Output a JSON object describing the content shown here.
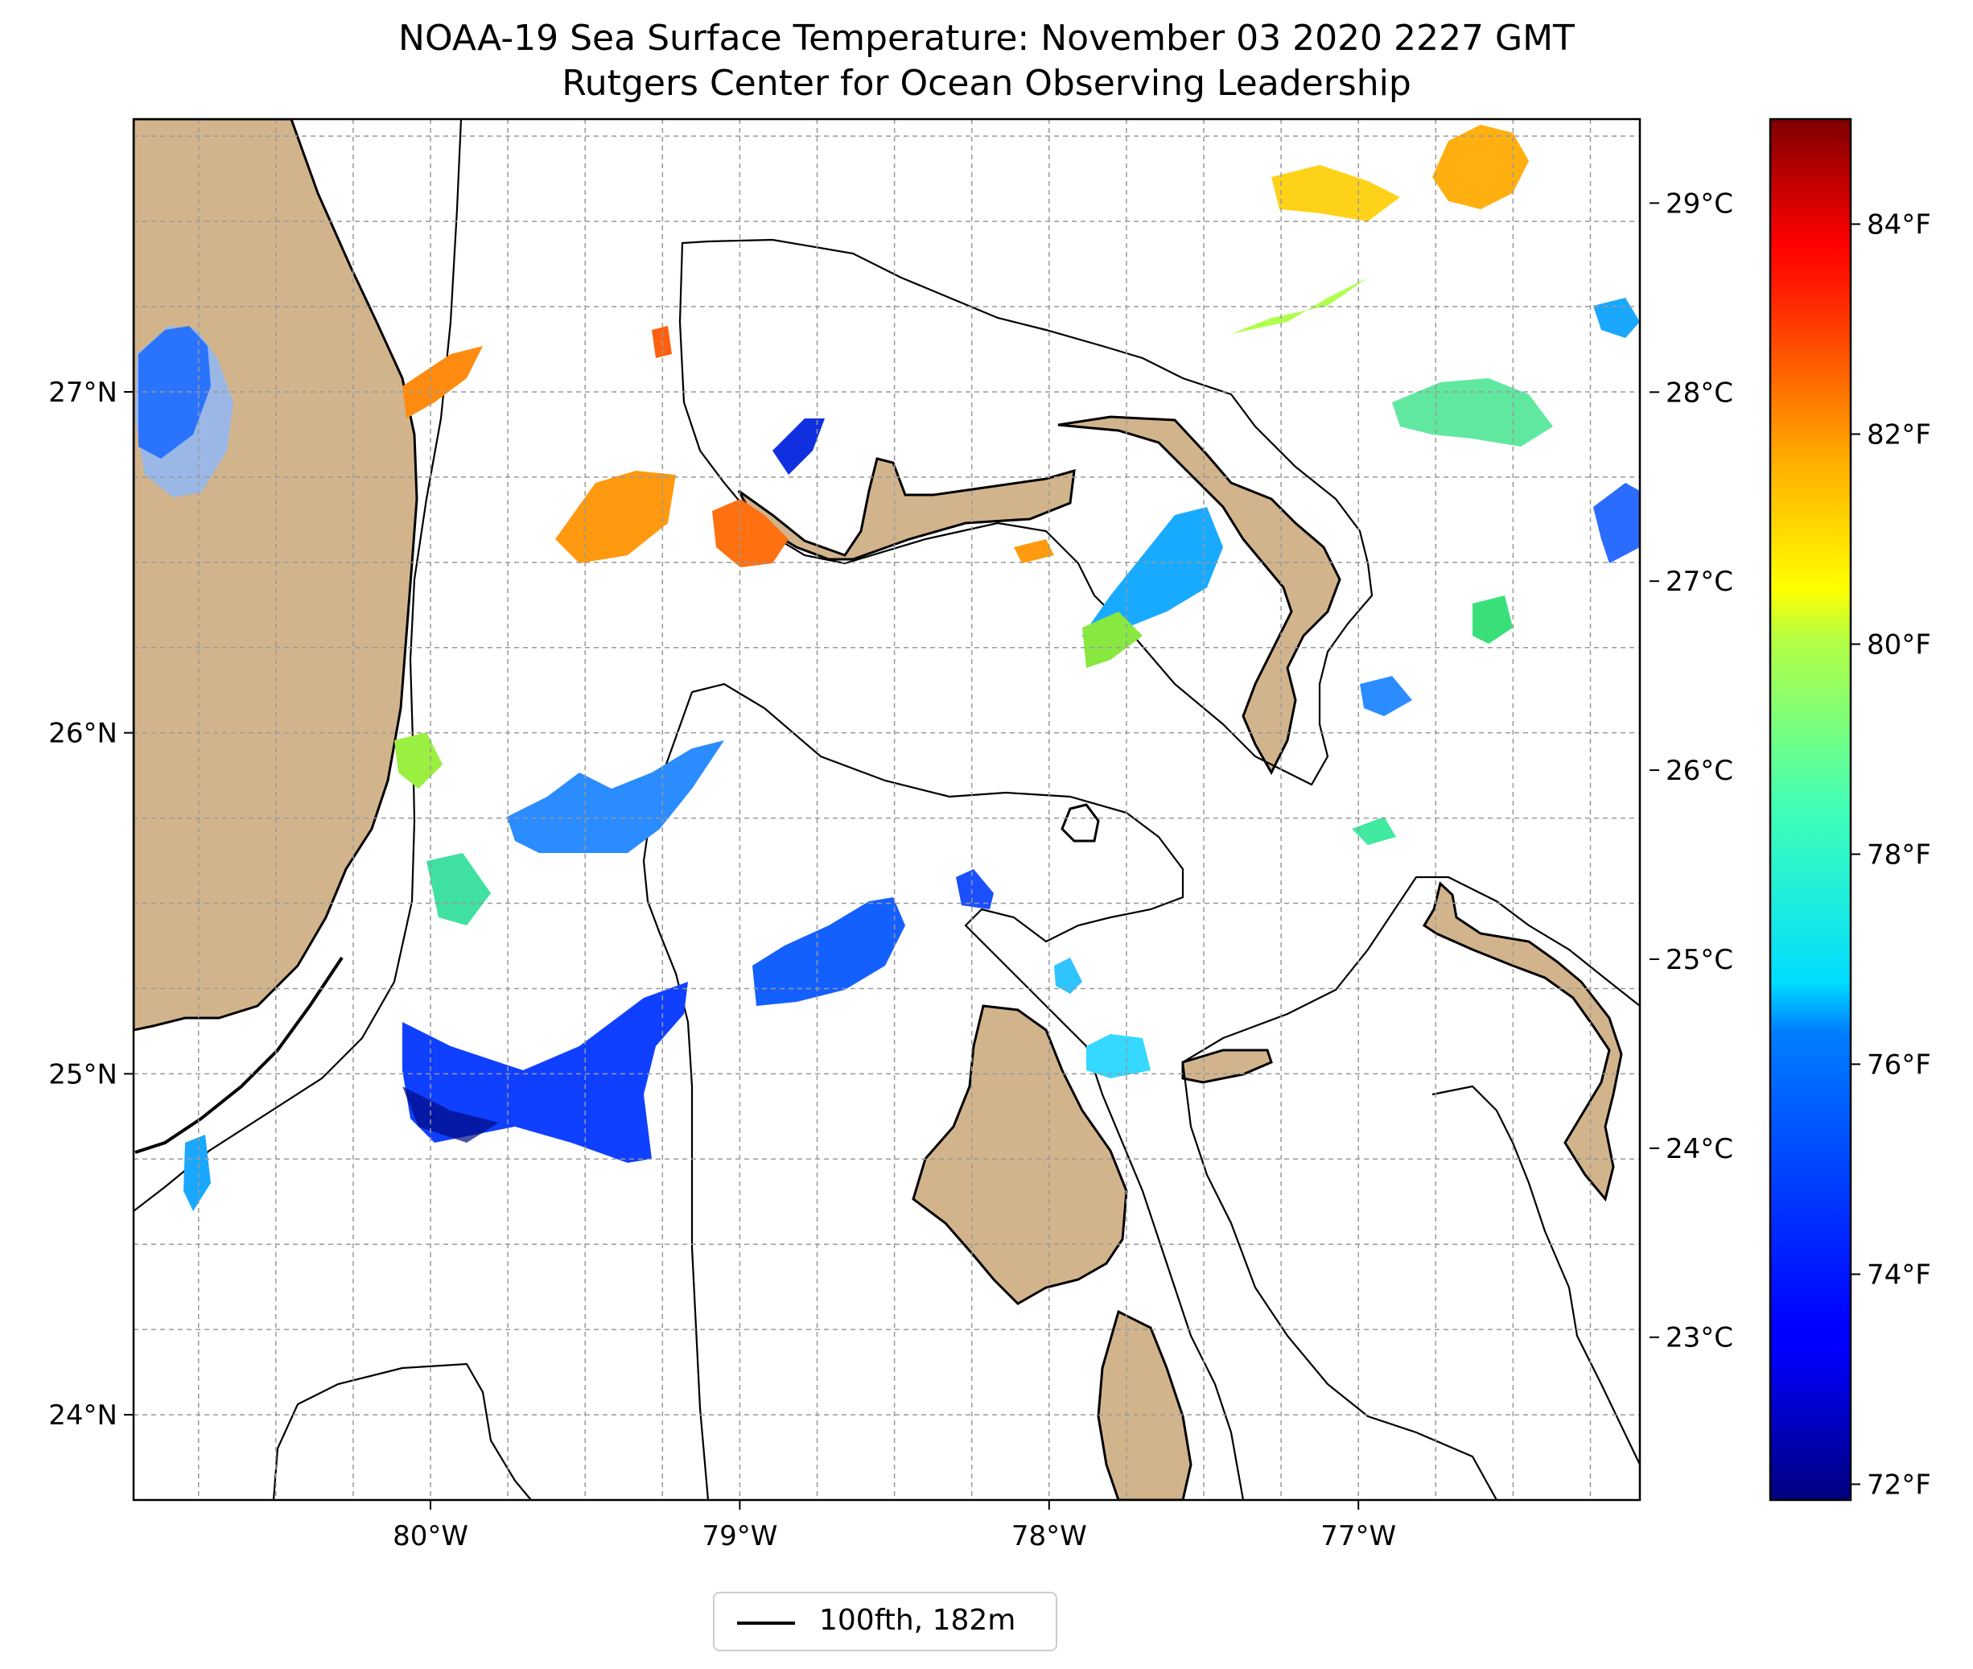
{
  "title": "NOAA-19 Sea Surface Temperature: November 03 2020 2227 GMT",
  "subtitle": "Rutgers Center for Ocean Observing Leadership",
  "map": {
    "lon_range": [
      -80.96,
      -76.09
    ],
    "lat_range": [
      23.75,
      27.8
    ],
    "lon_ticks": [
      {
        "value": -80,
        "label": "80°W"
      },
      {
        "value": -79,
        "label": "79°W"
      },
      {
        "value": -78,
        "label": "78°W"
      },
      {
        "value": -77,
        "label": "77°W"
      }
    ],
    "lat_ticks": [
      {
        "value": 24,
        "label": "24°N"
      },
      {
        "value": 25,
        "label": "25°N"
      },
      {
        "value": 26,
        "label": "26°N"
      },
      {
        "value": 27,
        "label": "27°N"
      }
    ],
    "gridlines": "dashed",
    "land_color": "#d2b48c"
  },
  "colorbar": {
    "colormap": "jet",
    "celsius_ticks": [
      {
        "value": 23,
        "label": "23°C"
      },
      {
        "value": 24,
        "label": "24°C"
      },
      {
        "value": 25,
        "label": "25°C"
      },
      {
        "value": 26,
        "label": "26°C"
      },
      {
        "value": 27,
        "label": "27°C"
      },
      {
        "value": 28,
        "label": "28°C"
      },
      {
        "value": 29,
        "label": "29°C"
      }
    ],
    "fahrenheit_ticks": [
      {
        "value": 72,
        "label": "72°F"
      },
      {
        "value": 74,
        "label": "74°F"
      },
      {
        "value": 76,
        "label": "76°F"
      },
      {
        "value": 78,
        "label": "78°F"
      },
      {
        "value": 80,
        "label": "80°F"
      },
      {
        "value": 82,
        "label": "82°F"
      },
      {
        "value": 84,
        "label": "84°F"
      }
    ]
  },
  "legend": {
    "label": "100fth, 182m",
    "placement": "bottom-center"
  }
}
